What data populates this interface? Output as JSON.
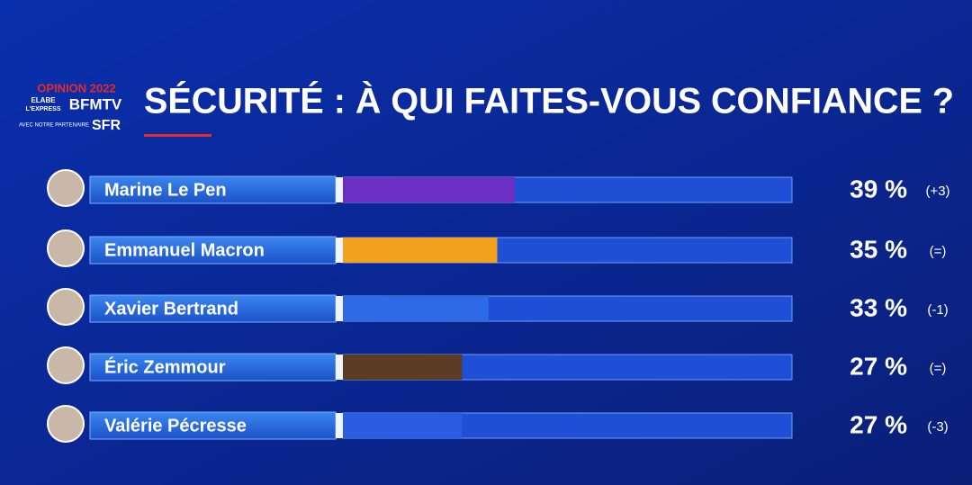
{
  "branding": {
    "opinion": "OPINION 2022",
    "pollster": "ELABE",
    "magazine": "L'EXPRESS",
    "channel": "BFMTV",
    "partner_note": "AVEC NOTRE PARTENAIRE",
    "partner": "SFR"
  },
  "chart_data": {
    "type": "bar",
    "orientation": "horizontal",
    "title": "SÉCURITÉ : À QUI FAITES-VOUS CONFIANCE ?",
    "categories": [
      "Marine Le Pen",
      "Emmanuel Macron",
      "Xavier Bertrand",
      "Éric Zemmour",
      "Valérie Pécresse"
    ],
    "values": [
      39,
      35,
      33,
      27,
      27
    ],
    "value_labels": [
      "39 %",
      "35 %",
      "33 %",
      "27 %",
      "27 %"
    ],
    "changes": [
      "(+3)",
      "(=)",
      "(-1)",
      "(=)",
      "(-3)"
    ],
    "colors": [
      "#6b2fc4",
      "#f2a21e",
      "#2e6ae6",
      "#5c3c22",
      "#2c5ce2"
    ],
    "xlim": [
      0,
      100
    ]
  }
}
